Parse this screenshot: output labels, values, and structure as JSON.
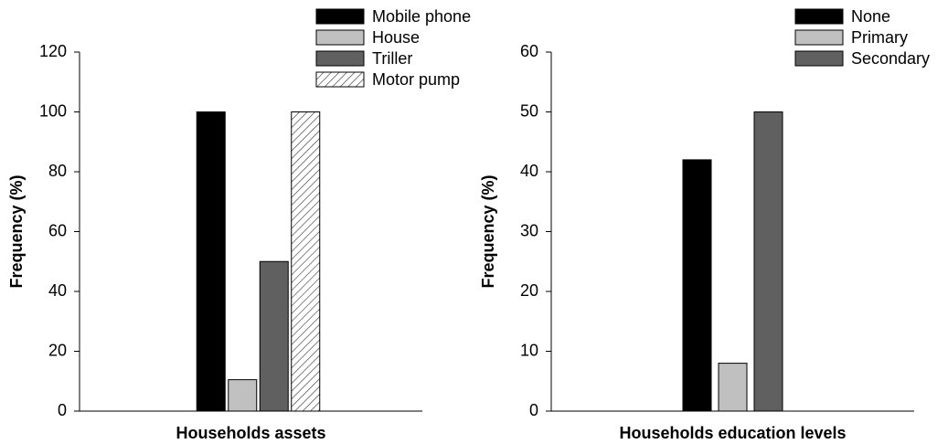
{
  "chart_data": [
    {
      "type": "bar",
      "xlabel": "Households assets",
      "ylabel": "Frequency (%)",
      "categories": [
        null
      ],
      "series": [
        {
          "name": "Mobile phone",
          "color": "#000000",
          "values": [
            100
          ]
        },
        {
          "name": "House",
          "color": "#c0c0c0",
          "values": [
            10.5
          ]
        },
        {
          "name": "Triller",
          "color": "#606060",
          "values": [
            50
          ]
        },
        {
          "name": "Motor pump",
          "color": "#ffffff",
          "hatch": true,
          "values": [
            100
          ]
        }
      ],
      "ylim": [
        0,
        120
      ],
      "yticks": [
        0,
        20,
        40,
        60,
        80,
        100,
        120
      ],
      "legend": "upper right"
    },
    {
      "type": "bar",
      "xlabel": "Households education levels",
      "ylabel": "Frequency (%)",
      "categories": [
        null
      ],
      "series": [
        {
          "name": "None",
          "color": "#000000",
          "values": [
            42
          ]
        },
        {
          "name": "Primary",
          "color": "#c0c0c0",
          "values": [
            8
          ]
        },
        {
          "name": "Secondary",
          "color": "#606060",
          "values": [
            50
          ]
        }
      ],
      "ylim": [
        0,
        60
      ],
      "yticks": [
        0,
        10,
        20,
        30,
        40,
        50,
        60
      ],
      "legend": "upper right"
    }
  ]
}
